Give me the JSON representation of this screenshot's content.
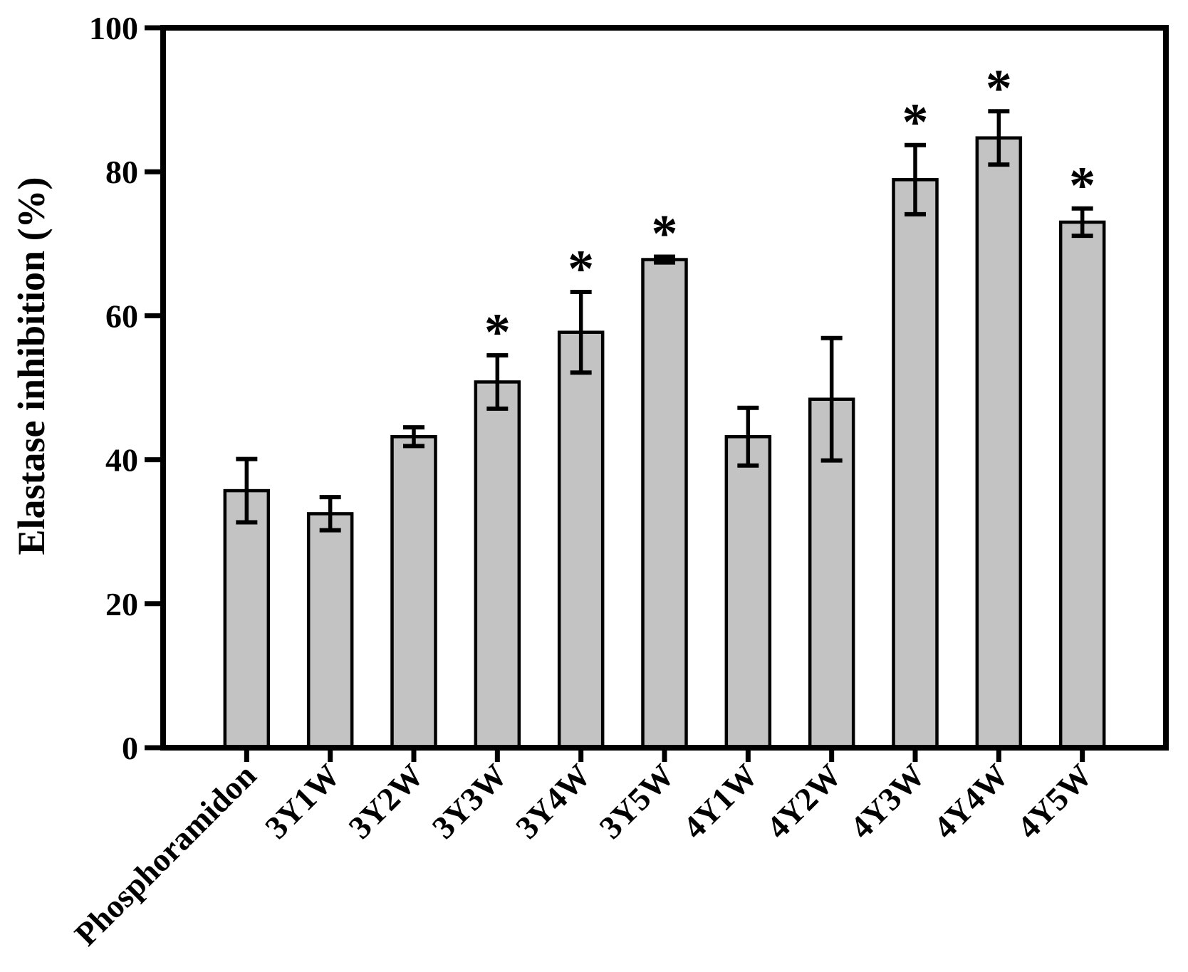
{
  "chart_data": {
    "type": "bar",
    "title": "",
    "xlabel": "",
    "ylabel": "Elastase inhibition (%)",
    "ylim": [
      0,
      100
    ],
    "yticks": [
      0,
      20,
      40,
      60,
      80,
      100
    ],
    "grid": false,
    "legend": "none",
    "background_color": "#ffffff",
    "bar_color": "#c3c3c3",
    "bar_edge_color": "#000000",
    "error_bar_color": "#000000",
    "axis_color": "#000000",
    "significance_marker": "*",
    "categories": [
      "Phosphoramidon",
      "3Y1W",
      "3Y2W",
      "3Y3W",
      "3Y4W",
      "3Y5W",
      "4Y1W",
      "4Y2W",
      "4Y3W",
      "4Y4W",
      "4Y5W"
    ],
    "series": [
      {
        "name": "Elastase inhibition (%)",
        "values": [
          35.7,
          32.5,
          43.2,
          50.8,
          57.7,
          67.8,
          43.2,
          48.4,
          78.9,
          84.7,
          73.0
        ],
        "errors": [
          4.4,
          2.3,
          1.3,
          3.7,
          5.6,
          0.4,
          4.0,
          8.5,
          4.8,
          3.7,
          1.9
        ],
        "significant": [
          false,
          false,
          false,
          true,
          true,
          true,
          false,
          false,
          true,
          true,
          true
        ]
      }
    ]
  }
}
